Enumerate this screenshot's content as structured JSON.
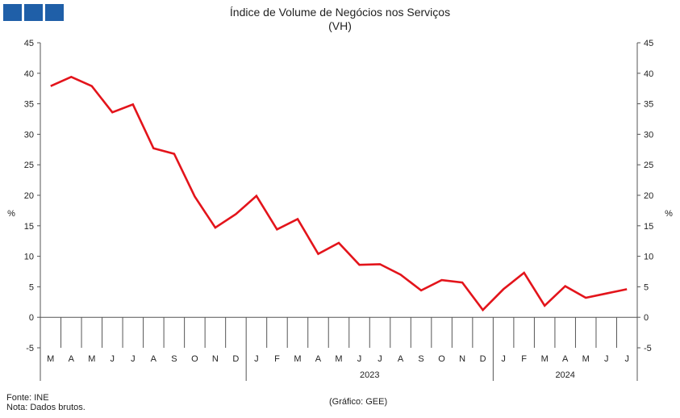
{
  "header": {
    "title": "Índice de Volume de Negócios nos Serviços",
    "subtitle": "(VH)"
  },
  "footer": {
    "source": "Fonte: INE",
    "note": "Nota: Dados brutos.",
    "credit": "(Gráfico: GEE)"
  },
  "colors": {
    "line": "#e3141b",
    "logo": "#1f5fa8"
  },
  "chart_data": {
    "type": "line",
    "title": "Índice de Volume de Negócios nos Serviços",
    "subtitle": "(VH)",
    "ylabel_left": "%",
    "ylabel_right": "%",
    "ylim": [
      -5,
      45
    ],
    "yticks": [
      -5,
      0,
      5,
      10,
      15,
      20,
      25,
      30,
      35,
      40,
      45
    ],
    "grid": false,
    "categories": [
      "M",
      "A",
      "M",
      "J",
      "J",
      "A",
      "S",
      "O",
      "N",
      "D",
      "J",
      "F",
      "M",
      "A",
      "M",
      "J",
      "J",
      "A",
      "S",
      "O",
      "N",
      "D",
      "J",
      "F",
      "M",
      "A",
      "M",
      "J",
      "J"
    ],
    "year_groups": [
      {
        "label": "",
        "start": 0,
        "end": 9
      },
      {
        "label": "2023",
        "start": 10,
        "end": 21
      },
      {
        "label": "2024",
        "start": 22,
        "end": 28
      }
    ],
    "series": [
      {
        "values": [
          37.9,
          39.4,
          37.9,
          33.6,
          34.9,
          27.7,
          26.8,
          19.8,
          14.7,
          16.9,
          19.9,
          14.4,
          16.1,
          10.4,
          12.2,
          8.6,
          8.7,
          7.0,
          4.4,
          6.1,
          5.7,
          1.2,
          4.6,
          7.3,
          1.9,
          5.1,
          3.2,
          3.9,
          4.6
        ]
      }
    ]
  }
}
